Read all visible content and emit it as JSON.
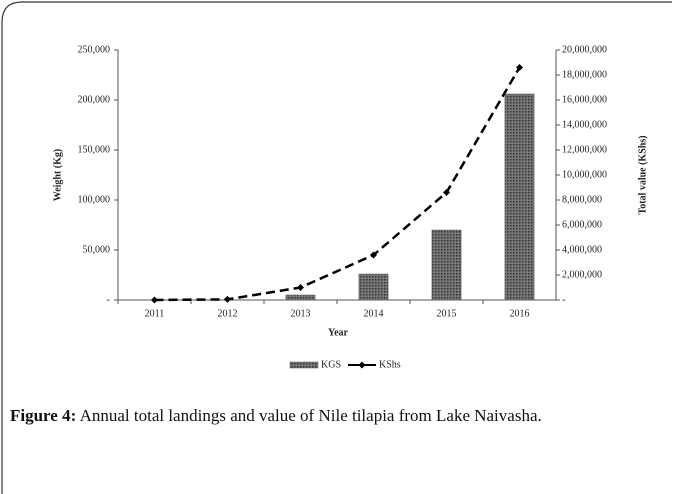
{
  "chart_data": {
    "type": "bar_line",
    "categories": [
      "2011",
      "2012",
      "2013",
      "2014",
      "2015",
      "2016"
    ],
    "series": [
      {
        "name": "KGS",
        "type": "bar",
        "color": "#555555",
        "values": [
          0,
          0,
          5000,
          26000,
          70000,
          206000
        ]
      },
      {
        "name": "KShs",
        "type": "line",
        "axis": "y2",
        "color": "#000000",
        "values": [
          0,
          50000,
          1000000,
          3600000,
          8600000,
          18600000
        ]
      }
    ],
    "x_label": "Year",
    "y_label": "Weight (Kg)",
    "y2_label": "Total value (KShs)",
    "ylim": [
      0,
      250000
    ],
    "yticks": [
      {
        "value": 0,
        "label": "-"
      },
      {
        "value": 50000,
        "label": "50,000"
      },
      {
        "value": 100000,
        "label": "100,000"
      },
      {
        "value": 150000,
        "label": "150,000"
      },
      {
        "value": 200000,
        "label": "200,000"
      },
      {
        "value": 250000,
        "label": "250,000"
      }
    ],
    "y2lim": [
      0,
      20000000
    ],
    "y2ticks": [
      {
        "value": 0,
        "label": "-"
      },
      {
        "value": 2000000,
        "label": "2,000,000"
      },
      {
        "value": 4000000,
        "label": "4,000,000"
      },
      {
        "value": 6000000,
        "label": "6,000,000"
      },
      {
        "value": 8000000,
        "label": "8,000,000"
      },
      {
        "value": 10000000,
        "label": "10,000,000"
      },
      {
        "value": 12000000,
        "label": "12,000,000"
      },
      {
        "value": 14000000,
        "label": "14,000,000"
      },
      {
        "value": 16000000,
        "label": "16,000,000"
      },
      {
        "value": 18000000,
        "label": "18,000,000"
      },
      {
        "value": 20000000,
        "label": "20,000,000"
      }
    ],
    "legend": "bottom"
  },
  "caption": {
    "label": "Figure 4:",
    "text": " Annual total landings and value of Nile tilapia from Lake Naivasha."
  }
}
